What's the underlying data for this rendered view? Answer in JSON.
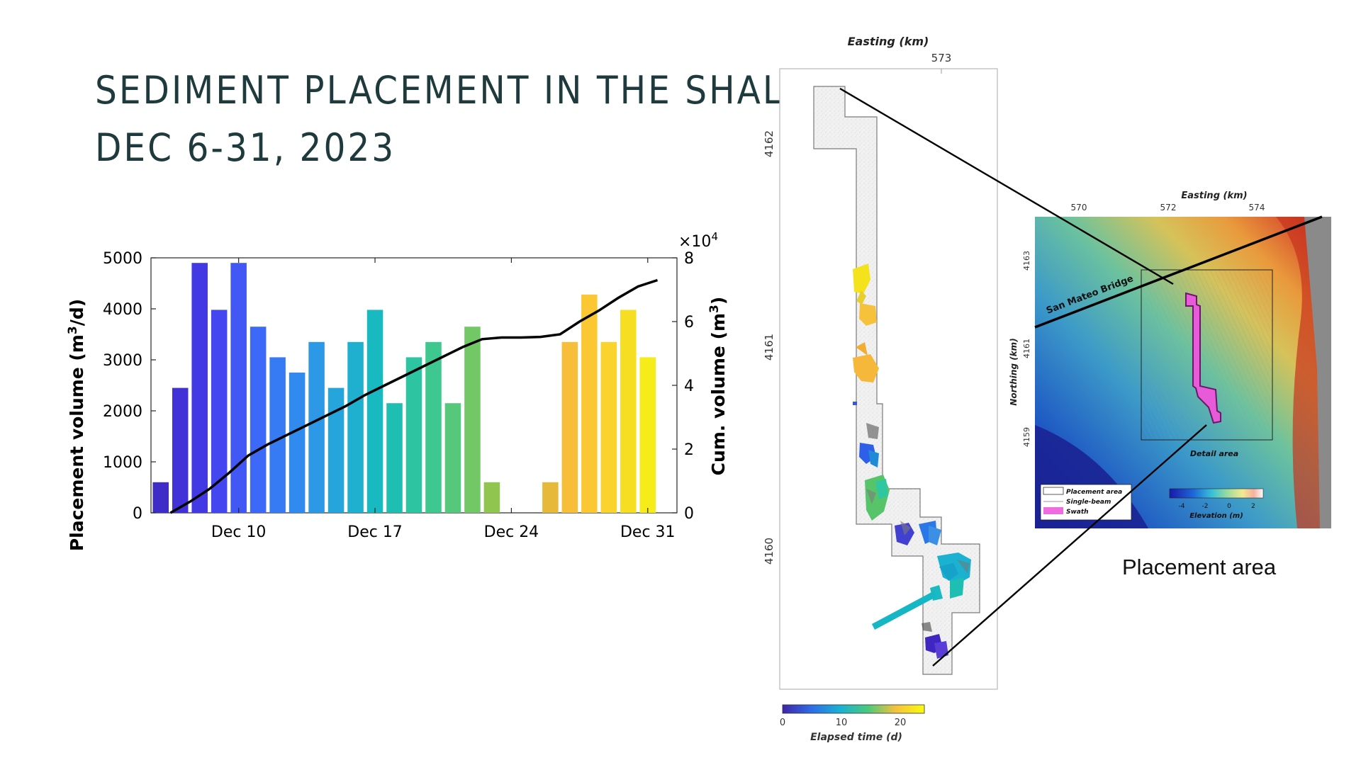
{
  "slide": {
    "title_line1": "SEDIMENT PLACEMENT IN THE SHALLOWS",
    "title_line2": "DEC 6-31, 2023",
    "placement_area_caption": "Placement area"
  },
  "chart_data": {
    "type": "bar",
    "x_tick_labels": [
      "Dec 10",
      "Dec 17",
      "Dec 24",
      "Dec 31"
    ],
    "x_tick_days": [
      10,
      17,
      24,
      31
    ],
    "xlim_days": [
      5.5,
      32.5
    ],
    "ylabel": "Placement volume (m³/d)",
    "ylabel_parts": {
      "pre": "Placement volume (m",
      "sup": "3",
      "post": "/d)"
    },
    "ylim": [
      0,
      5000
    ],
    "y_ticks": [
      0,
      1000,
      2000,
      3000,
      4000,
      5000
    ],
    "y2label": "Cum. volume (m³)",
    "y2label_parts": {
      "pre": "Cum. volume (m",
      "sup": "3",
      "post": ")"
    },
    "y2_multiplier": "×10",
    "y2_multiplier_exp": "4",
    "y2lim": [
      0,
      8
    ],
    "y2_ticks": [
      0,
      2,
      4,
      6,
      8
    ],
    "bars": [
      {
        "day": 6,
        "value": 600,
        "color": "#3e2ec7"
      },
      {
        "day": 7,
        "value": 2450,
        "color": "#4131d6"
      },
      {
        "day": 8,
        "value": 4900,
        "color": "#4239e4"
      },
      {
        "day": 9,
        "value": 3980,
        "color": "#4446ef"
      },
      {
        "day": 10,
        "value": 4900,
        "color": "#4158f5"
      },
      {
        "day": 11,
        "value": 3650,
        "color": "#3d69f8"
      },
      {
        "day": 12,
        "value": 3050,
        "color": "#377bf4"
      },
      {
        "day": 13,
        "value": 2750,
        "color": "#318aee"
      },
      {
        "day": 14,
        "value": 3350,
        "color": "#2c98e6"
      },
      {
        "day": 15,
        "value": 2450,
        "color": "#25a5dc"
      },
      {
        "day": 16,
        "value": 3350,
        "color": "#1fb0d0"
      },
      {
        "day": 17,
        "value": 3980,
        "color": "#19b9c2"
      },
      {
        "day": 18,
        "value": 2150,
        "color": "#1ebfb2"
      },
      {
        "day": 19,
        "value": 3050,
        "color": "#2cc4a1"
      },
      {
        "day": 20,
        "value": 3350,
        "color": "#3ec78f"
      },
      {
        "day": 21,
        "value": 2150,
        "color": "#56c87b"
      },
      {
        "day": 22,
        "value": 3650,
        "color": "#71c865"
      },
      {
        "day": 23,
        "value": 600,
        "color": "#90c54f"
      },
      {
        "day": 26,
        "value": 600,
        "color": "#e6b93a"
      },
      {
        "day": 27,
        "value": 3350,
        "color": "#f6be39"
      },
      {
        "day": 28,
        "value": 4280,
        "color": "#fbc834"
      },
      {
        "day": 29,
        "value": 3350,
        "color": "#fad42c"
      },
      {
        "day": 30,
        "value": 3980,
        "color": "#f6df22"
      },
      {
        "day": 31,
        "value": 3050,
        "color": "#f5ec1a"
      }
    ],
    "cumulative_curve": [
      [
        6.5,
        0
      ],
      [
        7.5,
        0.35
      ],
      [
        8.5,
        0.75
      ],
      [
        9.5,
        1.25
      ],
      [
        10.5,
        1.8
      ],
      [
        11.5,
        2.15
      ],
      [
        12.5,
        2.45
      ],
      [
        13.5,
        2.75
      ],
      [
        14.5,
        3.05
      ],
      [
        15.5,
        3.35
      ],
      [
        16.5,
        3.7
      ],
      [
        17.5,
        4.0
      ],
      [
        18.5,
        4.3
      ],
      [
        19.5,
        4.6
      ],
      [
        20.5,
        4.9
      ],
      [
        21.5,
        5.2
      ],
      [
        22.5,
        5.45
      ],
      [
        23.5,
        5.5
      ],
      [
        24.5,
        5.5
      ],
      [
        25.5,
        5.52
      ],
      [
        26.5,
        5.6
      ],
      [
        27.5,
        6.0
      ],
      [
        28.5,
        6.35
      ],
      [
        29.5,
        6.75
      ],
      [
        30.5,
        7.1
      ],
      [
        31.5,
        7.3
      ]
    ],
    "curve_color": "#000000"
  },
  "map_detail": {
    "x_axis_title": "Easting (km)",
    "x_tick": "573",
    "y_ticks": [
      "4162",
      "4161",
      "4160"
    ],
    "colorbar_ticks": [
      "0",
      "10",
      "20"
    ],
    "colorbar_label": "Elapsed time (d)",
    "colorbar_colors": [
      "#3e26a8",
      "#2f6be6",
      "#19b0d4",
      "#49c97c",
      "#f6c23b",
      "#f9fb0e"
    ]
  },
  "map_overview": {
    "x_axis_title": "Easting (km)",
    "x_ticks": [
      "570",
      "572",
      "574"
    ],
    "y_axis_title": "Northing (km)",
    "y_ticks": [
      "4163",
      "4161",
      "4159"
    ],
    "bridge_label": "San Mateo Bridge",
    "detail_label": "Detail area",
    "legend": [
      {
        "label": "Placement area",
        "swatch": "box"
      },
      {
        "label": "Single-beam",
        "swatch": "line"
      },
      {
        "label": "Swath",
        "swatch": "magenta"
      }
    ],
    "elevation_ticks": [
      "-4",
      "-2",
      "0",
      "2"
    ],
    "elevation_label": "Elevation (m)",
    "swath_color": "#e85bd8"
  }
}
